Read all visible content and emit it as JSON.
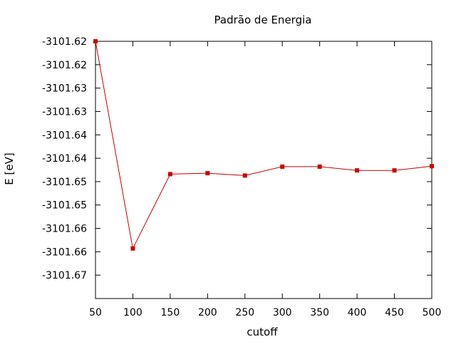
{
  "chart_data": {
    "type": "line",
    "title": "Padrão de Energia",
    "xlabel": "cutoff",
    "ylabel": "E [eV]",
    "xlim": [
      50,
      500
    ],
    "ylim": [
      -3101.67,
      -3101.615
    ],
    "grid": false,
    "x_ticks": [
      "50",
      "100",
      "150",
      "200",
      "250",
      "300",
      "350",
      "400",
      "450",
      "500"
    ],
    "x_tick_values": [
      50,
      100,
      150,
      200,
      250,
      300,
      350,
      400,
      450,
      500
    ],
    "y_ticks": [
      "-3101.62",
      "-3101.62",
      "-3101.63",
      "-3101.63",
      "-3101.64",
      "-3101.64",
      "-3101.65",
      "-3101.65",
      "-3101.66",
      "-3101.66",
      "-3101.67"
    ],
    "y_tick_values": [
      -3101.615,
      -3101.62,
      -3101.625,
      -3101.63,
      -3101.635,
      -3101.64,
      -3101.645,
      -3101.65,
      -3101.655,
      -3101.66,
      -3101.665
    ],
    "series": [
      {
        "color": "#cc0000",
        "x": [
          50,
          100,
          150,
          200,
          250,
          300,
          350,
          400,
          450,
          500
        ],
        "y": [
          -3101.615,
          -3101.6593,
          -3101.6434,
          -3101.6432,
          -3101.6437,
          -3101.6418,
          -3101.6418,
          -3101.6426,
          -3101.6426,
          -3101.6417
        ]
      }
    ]
  }
}
